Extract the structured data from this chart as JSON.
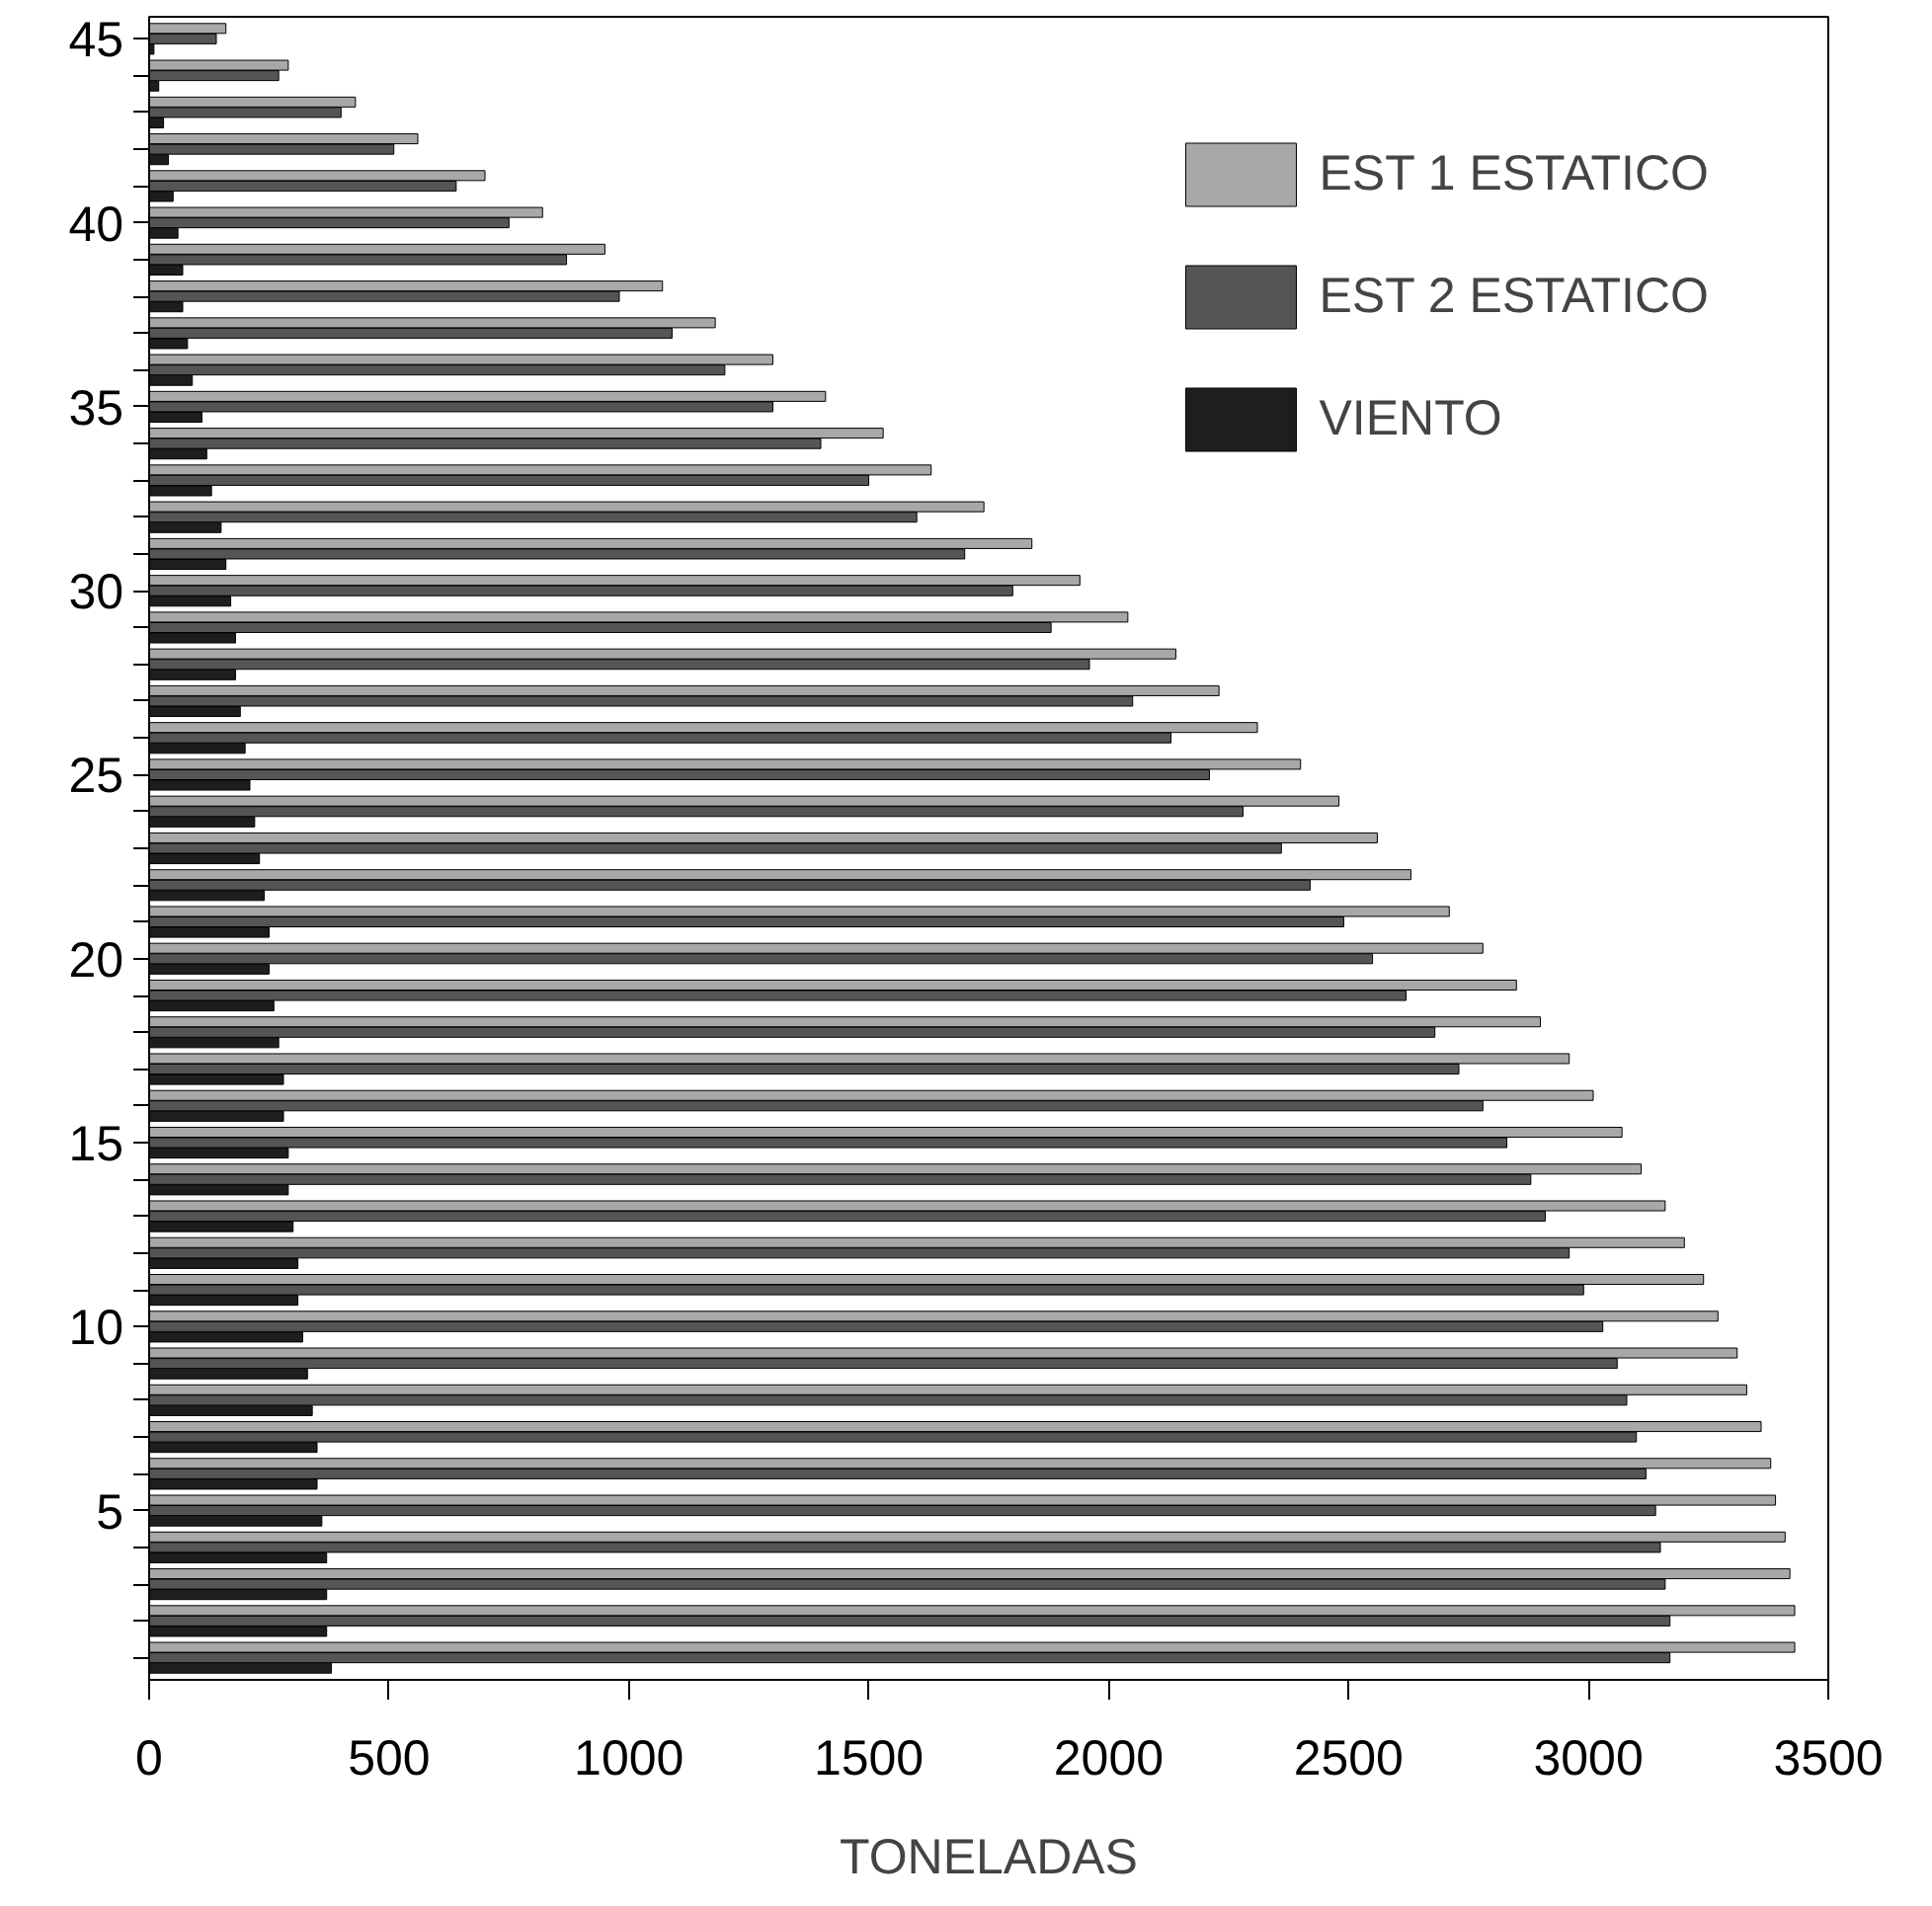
{
  "chart_data": {
    "type": "bar",
    "orientation": "horizontal",
    "xlabel": "TONELADAS",
    "categories": [
      "45",
      null,
      null,
      null,
      null,
      "40",
      null,
      null,
      null,
      null,
      "35",
      null,
      null,
      null,
      null,
      "30",
      null,
      null,
      null,
      null,
      "25",
      null,
      null,
      null,
      null,
      "20",
      null,
      null,
      null,
      null,
      "15",
      null,
      null,
      null,
      null,
      "10",
      null,
      null,
      null,
      null,
      "5",
      null,
      null,
      null,
      null
    ],
    "series": [
      {
        "name": "EST 1 ESTATICO",
        "color": "#a8a8a8",
        "values": [
          160,
          290,
          430,
          560,
          700,
          820,
          950,
          1070,
          1180,
          1300,
          1410,
          1530,
          1630,
          1740,
          1840,
          1940,
          2040,
          2140,
          2230,
          2310,
          2400,
          2480,
          2560,
          2630,
          2710,
          2780,
          2850,
          2900,
          2960,
          3010,
          3070,
          3110,
          3160,
          3200,
          3240,
          3270,
          3310,
          3330,
          3360,
          3380,
          3390,
          3410,
          3420,
          3430,
          3430
        ]
      },
      {
        "name": "EST 2 ESTATICO",
        "color": "#555555",
        "values": [
          140,
          270,
          400,
          510,
          640,
          750,
          870,
          980,
          1090,
          1200,
          1300,
          1400,
          1500,
          1600,
          1700,
          1800,
          1880,
          1960,
          2050,
          2130,
          2210,
          2280,
          2360,
          2420,
          2490,
          2550,
          2620,
          2680,
          2730,
          2780,
          2830,
          2880,
          2910,
          2960,
          2990,
          3030,
          3060,
          3080,
          3100,
          3120,
          3140,
          3150,
          3160,
          3170,
          3170
        ]
      },
      {
        "name": "VIENTO",
        "color": "#1e1e1e",
        "values": [
          10,
          20,
          30,
          40,
          50,
          60,
          70,
          70,
          80,
          90,
          110,
          120,
          130,
          150,
          160,
          170,
          180,
          180,
          190,
          200,
          210,
          220,
          230,
          240,
          250,
          250,
          260,
          270,
          280,
          280,
          290,
          290,
          300,
          310,
          310,
          320,
          330,
          340,
          350,
          350,
          360,
          370,
          370,
          370,
          380
        ]
      }
    ],
    "xlim": [
      0,
      3500
    ],
    "xticks": [
      0,
      500,
      1000,
      1500,
      2000,
      2500,
      3000,
      3500
    ],
    "grid": false,
    "legend": "top right"
  }
}
